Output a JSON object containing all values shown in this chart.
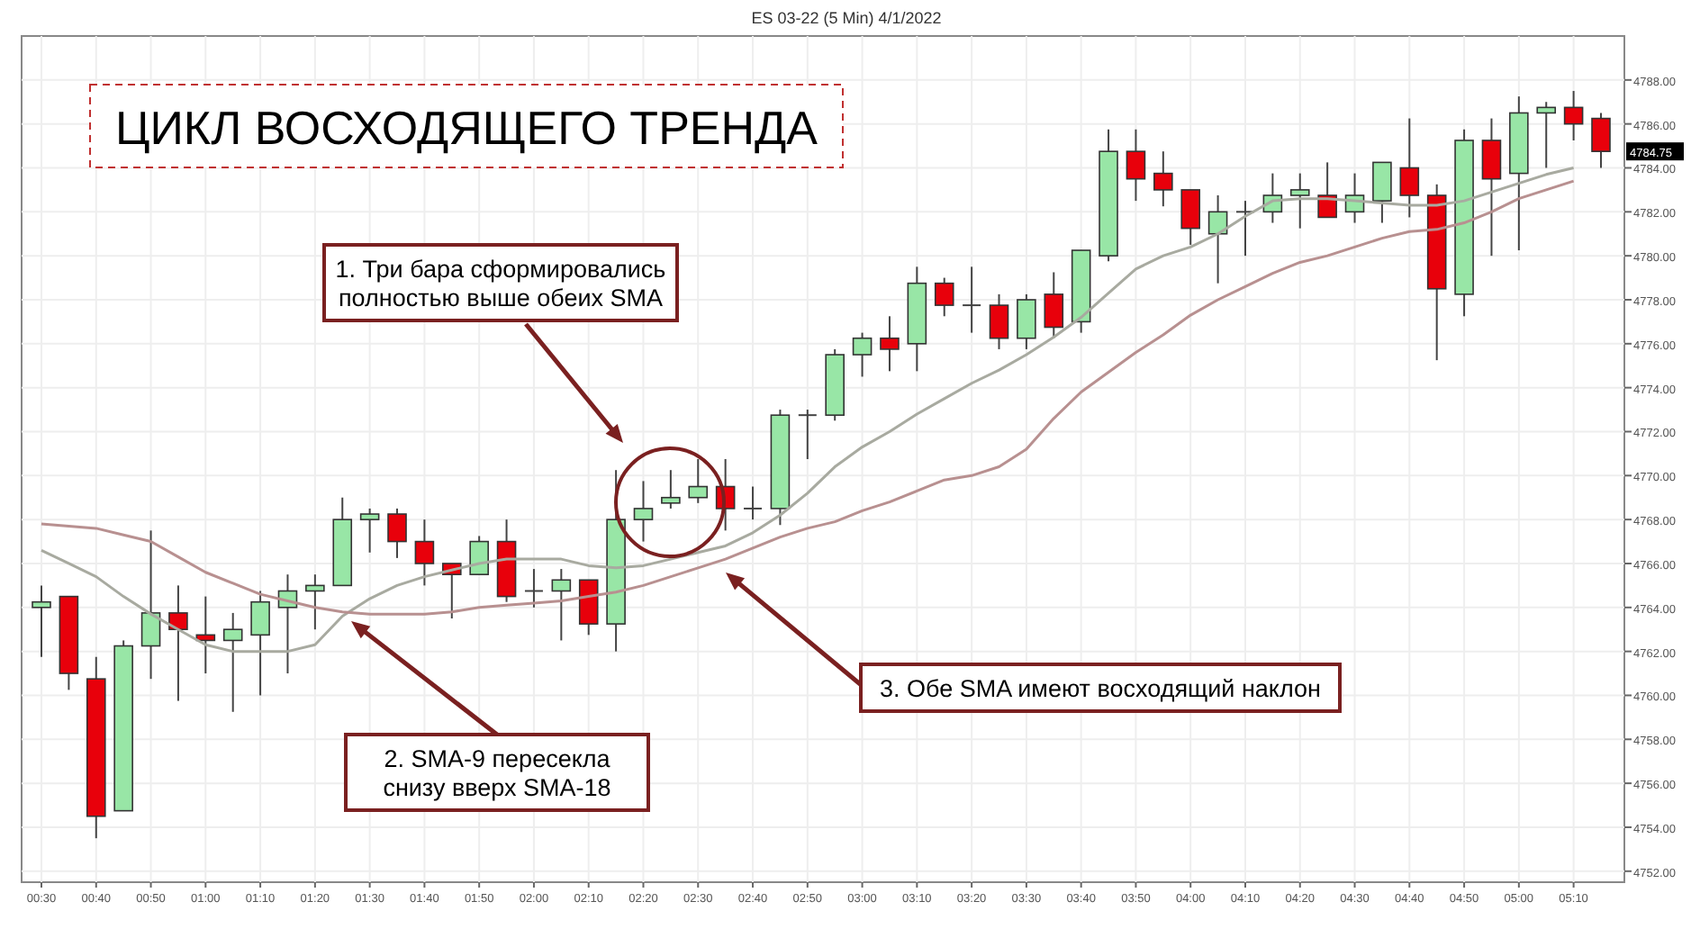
{
  "chart_data": {
    "type": "candlestick",
    "title": "ЦИКЛ ВОСХОДЯЩЕГО ТРЕНДА",
    "subtitle": "ES 03-22 (5 Min)  4/1/2022",
    "categories": [
      "00:30",
      null,
      "00:40",
      null,
      "00:50",
      null,
      "01:00",
      null,
      "01:10",
      null,
      "01:20",
      null,
      "01:30",
      null,
      "01:40",
      null,
      "01:50",
      null,
      "02:00",
      null,
      "02:10",
      null,
      "02:20",
      null,
      "02:30",
      null,
      "02:40",
      null,
      "02:50",
      null,
      "03:00",
      null,
      "03:10",
      null,
      "03:20",
      null,
      "03:30",
      null,
      "03:40",
      null,
      "03:50",
      null,
      "04:00",
      null,
      "04:10",
      null,
      "04:20",
      null,
      "04:30",
      null,
      "04:40",
      null,
      "04:50",
      null,
      "05:00",
      null,
      "05:10",
      null
    ],
    "ohlc": [
      [
        4764,
        4765,
        4761.75,
        4764.25
      ],
      [
        4764.5,
        4764.5,
        4760.25,
        4761
      ],
      [
        4760.75,
        4761.75,
        4753.5,
        4754.5
      ],
      [
        4754.75,
        4762.5,
        4754.75,
        4762.25
      ],
      [
        4762.25,
        4767.5,
        4760.75,
        4763.75
      ],
      [
        4763.75,
        4765,
        4759.75,
        4763
      ],
      [
        4762.75,
        4764.5,
        4761,
        4762.5
      ],
      [
        4762.5,
        4763.75,
        4759.25,
        4763
      ],
      [
        4762.75,
        4764.75,
        4760,
        4764.25
      ],
      [
        4764,
        4765.5,
        4761,
        4764.75
      ],
      [
        4764.75,
        4765.5,
        4763,
        4765
      ],
      [
        4765,
        4769,
        4765,
        4768
      ],
      [
        4768,
        4768.5,
        4766.5,
        4768.25
      ],
      [
        4768.25,
        4768.5,
        4766.25,
        4767
      ],
      [
        4767,
        4768,
        4765,
        4766
      ],
      [
        4766,
        4766,
        4763.5,
        4765.5
      ],
      [
        4765.5,
        4767.25,
        4765.5,
        4767
      ],
      [
        4767,
        4768,
        4764.25,
        4764.5
      ],
      [
        4764.75,
        4765.75,
        4764,
        4764.75
      ],
      [
        4764.75,
        4765.75,
        4762.5,
        4765.25
      ],
      [
        4765.25,
        4765.25,
        4762.75,
        4763.25
      ],
      [
        4763.25,
        4770.25,
        4762,
        4768
      ],
      [
        4768,
        4769.75,
        4767,
        4768.5
      ],
      [
        4768.75,
        4770.25,
        4768.5,
        4769
      ],
      [
        4769,
        4770.75,
        4768.75,
        4769.5
      ],
      [
        4769.5,
        4770.75,
        4767.5,
        4768.5
      ],
      [
        4768.5,
        4769.5,
        4768,
        4768.5
      ],
      [
        4768.5,
        4773,
        4767.75,
        4772.75
      ],
      [
        4772.75,
        4773,
        4770.75,
        4772.75
      ],
      [
        4772.75,
        4775.75,
        4772.5,
        4775.5
      ],
      [
        4775.5,
        4776.5,
        4774.5,
        4776.25
      ],
      [
        4776.25,
        4777.25,
        4774.75,
        4775.75
      ],
      [
        4776,
        4779.5,
        4774.75,
        4778.75
      ],
      [
        4778.75,
        4779,
        4777.25,
        4777.75
      ],
      [
        4777.75,
        4779.5,
        4776.5,
        4777.75
      ],
      [
        4777.75,
        4778.25,
        4775.75,
        4776.25
      ],
      [
        4776.25,
        4778.25,
        4775.75,
        4778
      ],
      [
        4778.25,
        4779.25,
        4776.25,
        4776.75
      ],
      [
        4777,
        4780.25,
        4776.5,
        4780.25
      ],
      [
        4780,
        4785.75,
        4779.75,
        4784.75
      ],
      [
        4784.75,
        4785.75,
        4782.5,
        4783.5
      ],
      [
        4783.75,
        4784.75,
        4782.25,
        4783
      ],
      [
        4783,
        4783,
        4780.5,
        4781.25
      ],
      [
        4781,
        4782.75,
        4778.75,
        4782
      ],
      [
        4782,
        4782.5,
        4780,
        4782
      ],
      [
        4782,
        4783.75,
        4781.5,
        4782.75
      ],
      [
        4782.75,
        4783.75,
        4781.25,
        4783
      ],
      [
        4782.75,
        4784.25,
        4781.75,
        4781.75
      ],
      [
        4782,
        4783.75,
        4781.5,
        4782.75
      ],
      [
        4782.5,
        4784.25,
        4781.5,
        4784.25
      ],
      [
        4784,
        4786.25,
        4781.75,
        4782.75
      ],
      [
        4782.75,
        4783.25,
        4775.25,
        4778.5
      ],
      [
        4778.25,
        4785.75,
        4777.25,
        4785.25
      ],
      [
        4785.25,
        4786.25,
        4780,
        4783.5
      ],
      [
        4783.75,
        4787.25,
        4780.25,
        4786.5
      ],
      [
        4786.5,
        4787,
        4784,
        4786.75
      ],
      [
        4786.75,
        4787.5,
        4785.25,
        4786
      ],
      [
        4786.25,
        4786.5,
        4784,
        4784.75
      ]
    ],
    "colors": [
      "#98e6a6",
      "#e8000b",
      "#e8000b",
      "#98e6a6",
      "#98e6a6",
      "#e8000b",
      "#e8000b",
      "#98e6a6",
      "#98e6a6",
      "#98e6a6",
      "#98e6a6",
      "#98e6a6",
      "#98e6a6",
      "#e8000b",
      "#e8000b",
      "#e8000b",
      "#98e6a6",
      "#e8000b",
      "#444444",
      "#98e6a6",
      "#e8000b",
      "#98e6a6",
      "#98e6a6",
      "#98e6a6",
      "#98e6a6",
      "#e8000b",
      "#444444",
      "#98e6a6",
      "#444444",
      "#98e6a6",
      "#98e6a6",
      "#e8000b",
      "#98e6a6",
      "#e8000b",
      "#444444",
      "#e8000b",
      "#98e6a6",
      "#e8000b",
      "#98e6a6",
      "#98e6a6",
      "#e8000b",
      "#e8000b",
      "#e8000b",
      "#98e6a6",
      "#444444",
      "#98e6a6",
      "#98e6a6",
      "#e8000b",
      "#98e6a6",
      "#98e6a6",
      "#e8000b",
      "#e8000b",
      "#98e6a6",
      "#e8000b",
      "#98e6a6",
      "#98e6a6",
      "#e8000b",
      "#e8000b"
    ],
    "series": [
      {
        "type": "line",
        "color": "#a8aaa0",
        "values": [
          4766.6,
          4766.0,
          4765.4,
          4764.5,
          4763.7,
          4763.0,
          4762.3,
          4762.0,
          4762.0,
          4762.0,
          4762.3,
          4763.6,
          4764.4,
          4765.0,
          4765.4,
          4765.7,
          4766.0,
          4766.2,
          4766.2,
          4766.2,
          4765.9,
          4765.8,
          4765.9,
          4766.2,
          4766.5,
          4766.8,
          4767.4,
          4768.2,
          4769.2,
          4770.4,
          4771.3,
          4772.0,
          4772.8,
          4773.5,
          4774.2,
          4774.8,
          4775.5,
          4776.3,
          4777.2,
          4778.3,
          4779.4,
          4780.0,
          4780.4,
          4781.0,
          4781.8,
          4782.5,
          4782.6,
          4782.6,
          4782.5,
          4782.4,
          4782.3,
          4782.3,
          4782.5,
          4782.9,
          4783.3,
          4783.7,
          4784.0,
          null
        ]
      },
      {
        "type": "line",
        "color": "#b89090",
        "values": [
          4767.8,
          4767.7,
          4767.6,
          4767.3,
          4767.0,
          4766.3,
          4765.6,
          4765.1,
          4764.6,
          4764.3,
          4764.0,
          4763.8,
          4763.7,
          4763.7,
          4763.7,
          4763.8,
          4764.0,
          4764.1,
          4764.2,
          4764.3,
          4764.5,
          4764.7,
          4765.0,
          4765.4,
          4765.8,
          4766.2,
          4766.7,
          4767.2,
          4767.6,
          4767.9,
          4768.4,
          4768.8,
          4769.3,
          4769.8,
          4770.0,
          4770.4,
          4771.2,
          4772.6,
          4773.8,
          4774.7,
          4775.6,
          4776.4,
          4777.3,
          4778.0,
          4778.6,
          4779.2,
          4779.7,
          4780.0,
          4780.4,
          4780.8,
          4781.1,
          4781.2,
          4781.5,
          4782.0,
          4782.6,
          4783.0,
          4783.4,
          null
        ]
      }
    ],
    "ylim": [
      4751.5,
      4790
    ],
    "yticks": [
      {
        "value": 4752,
        "label": "4752.00"
      },
      {
        "value": 4754,
        "label": "4754.00"
      },
      {
        "value": 4756,
        "label": "4756.00"
      },
      {
        "value": 4758,
        "label": "4758.00"
      },
      {
        "value": 4760,
        "label": "4760.00"
      },
      {
        "value": 4762,
        "label": "4762.00"
      },
      {
        "value": 4764,
        "label": "4764.00"
      },
      {
        "value": 4766,
        "label": "4766.00"
      },
      {
        "value": 4768,
        "label": "4768.00"
      },
      {
        "value": 4770,
        "label": "4770.00"
      },
      {
        "value": 4772,
        "label": "4772.00"
      },
      {
        "value": 4774,
        "label": "4774.00"
      },
      {
        "value": 4776,
        "label": "4776.00"
      },
      {
        "value": 4778,
        "label": "4778.00"
      },
      {
        "value": 4780,
        "label": "4780.00"
      },
      {
        "value": 4782,
        "label": "4782.00"
      },
      {
        "value": 4784,
        "label": "4784.00"
      },
      {
        "value": 4786,
        "label": "4786.00"
      },
      {
        "value": 4788,
        "label": "4788.00"
      }
    ],
    "grid": true,
    "annotations": [
      "1. Три бара сформировались полностью выше обеих SMA",
      "2. SMA-9 пересекла снизу вверх SMA-18",
      "3. Обе SMA имеют восходящий наклон",
      "4784.75"
    ]
  }
}
